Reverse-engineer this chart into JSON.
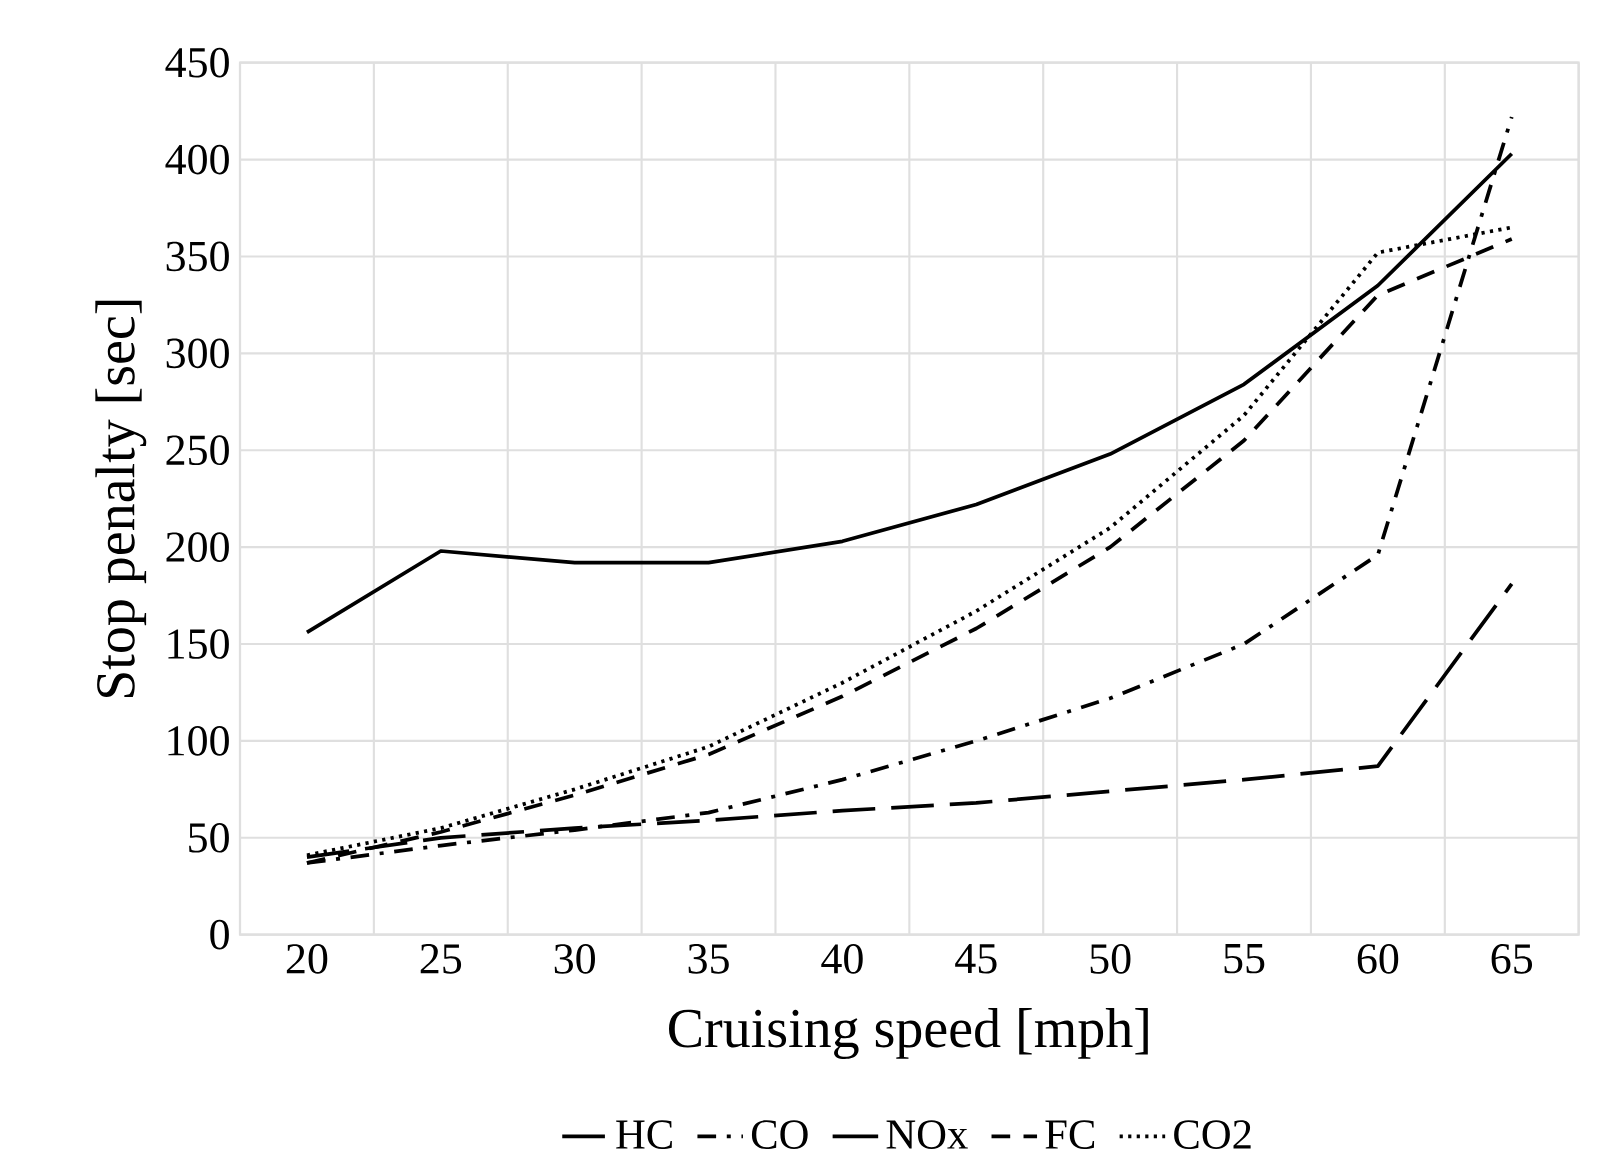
{
  "chart_data": {
    "type": "line",
    "xlabel": "Cruising speed [mph]",
    "ylabel": "Stop penalty [sec]",
    "categories": [
      "20",
      "25",
      "30",
      "35",
      "40",
      "45",
      "50",
      "55",
      "60",
      "65"
    ],
    "ylim": [
      0,
      450
    ],
    "yticks": [
      0,
      50,
      100,
      150,
      200,
      250,
      300,
      350,
      400,
      450
    ],
    "grid": true,
    "legend": "bottom",
    "marker": "none",
    "series": [
      {
        "name": "HC",
        "color": "#000000",
        "line_style": "longdashed",
        "values": [
          40,
          50,
          55,
          59,
          64,
          68,
          74,
          80,
          87,
          181
        ]
      },
      {
        "name": "CO",
        "color": "#000000",
        "line_style": "dashdot",
        "values": [
          37,
          46,
          54,
          63,
          80,
          100,
          122,
          150,
          196,
          422
        ]
      },
      {
        "name": "NOx",
        "color": "#000000",
        "line_style": "solid",
        "values": [
          156,
          198,
          192,
          192,
          203,
          222,
          248,
          284,
          335,
          403
        ]
      },
      {
        "name": "FC",
        "color": "#000000",
        "line_style": "dashed",
        "values": [
          37,
          53,
          72,
          93,
          123,
          158,
          200,
          255,
          330,
          359
        ]
      },
      {
        "name": "CO2",
        "color": "#000000",
        "line_style": "dotted",
        "values": [
          41,
          55,
          75,
          97,
          130,
          167,
          210,
          268,
          352,
          365
        ]
      }
    ]
  }
}
